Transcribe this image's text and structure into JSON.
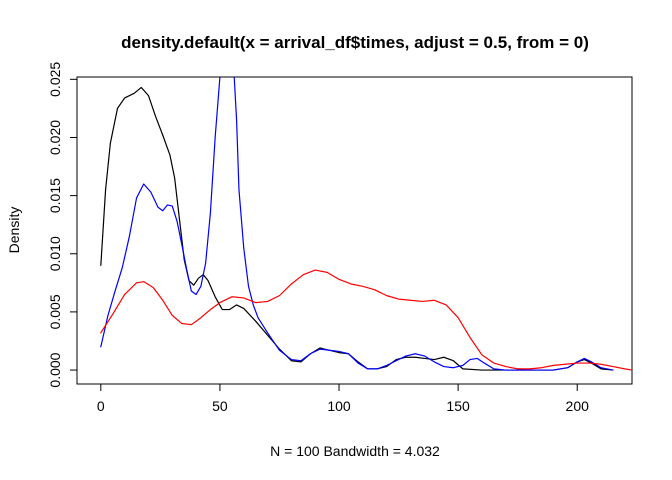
{
  "chart_data": {
    "type": "line",
    "title": "density.default(x = arrival_df$times, adjust = 0.5, from = 0)",
    "xlabel": "N = 100   Bandwidth = 4.032",
    "ylabel": "Density",
    "xlim": [
      -10,
      223
    ],
    "ylim": [
      -0.0012,
      0.0252
    ],
    "xticks": [
      0,
      50,
      100,
      150,
      200
    ],
    "yticks": [
      0.0,
      0.005,
      0.01,
      0.015,
      0.02,
      0.025
    ],
    "xtick_labels": [
      "0",
      "50",
      "100",
      "150",
      "200"
    ],
    "ytick_labels": [
      "0.000",
      "0.005",
      "0.010",
      "0.015",
      "0.020",
      "0.025"
    ],
    "grid": false,
    "legend": "none",
    "series": [
      {
        "color": "#000000",
        "points": [
          [
            0,
            0.009
          ],
          [
            2,
            0.0155
          ],
          [
            4,
            0.0195
          ],
          [
            7,
            0.0225
          ],
          [
            10,
            0.0234
          ],
          [
            14,
            0.0238
          ],
          [
            17,
            0.0243
          ],
          [
            20,
            0.0236
          ],
          [
            23,
            0.0218
          ],
          [
            26,
            0.0202
          ],
          [
            29,
            0.0185
          ],
          [
            31,
            0.0165
          ],
          [
            33,
            0.013
          ],
          [
            35,
            0.0095
          ],
          [
            37,
            0.0077
          ],
          [
            39,
            0.0073
          ],
          [
            41,
            0.0079
          ],
          [
            43,
            0.0082
          ],
          [
            45,
            0.0077
          ],
          [
            48,
            0.0063
          ],
          [
            51,
            0.0052
          ],
          [
            54,
            0.0052
          ],
          [
            57,
            0.0056
          ],
          [
            60,
            0.0053
          ],
          [
            65,
            0.0042
          ],
          [
            70,
            0.003
          ],
          [
            75,
            0.0018
          ],
          [
            80,
            0.0008
          ],
          [
            84,
            0.0007
          ],
          [
            88,
            0.0014
          ],
          [
            92,
            0.0019
          ],
          [
            96,
            0.0017
          ],
          [
            100,
            0.0015
          ],
          [
            104,
            0.0014
          ],
          [
            108,
            0.0007
          ],
          [
            112,
            0.0001
          ],
          [
            116,
            0.0001
          ],
          [
            120,
            0.0003
          ],
          [
            124,
            0.0009
          ],
          [
            128,
            0.0011
          ],
          [
            132,
            0.0011
          ],
          [
            136,
            0.001
          ],
          [
            140,
            0.0009
          ],
          [
            144,
            0.0011
          ],
          [
            148,
            0.0008
          ],
          [
            152,
            0.0001
          ],
          [
            160,
            0.0
          ],
          [
            170,
            0.0
          ],
          [
            180,
            0.0
          ],
          [
            190,
            0.0
          ],
          [
            196,
            0.0002
          ],
          [
            200,
            0.0007
          ],
          [
            203,
            0.0009
          ],
          [
            206,
            0.0006
          ],
          [
            210,
            0.0001
          ],
          [
            215,
            0.0
          ]
        ]
      },
      {
        "color": "#0000ff",
        "points": [
          [
            0,
            0.002
          ],
          [
            3,
            0.0047
          ],
          [
            6,
            0.0068
          ],
          [
            9,
            0.0088
          ],
          [
            12,
            0.0115
          ],
          [
            15,
            0.0148
          ],
          [
            18,
            0.016
          ],
          [
            21,
            0.0153
          ],
          [
            24,
            0.014
          ],
          [
            26,
            0.0137
          ],
          [
            28,
            0.0142
          ],
          [
            30,
            0.0141
          ],
          [
            32,
            0.0128
          ],
          [
            34,
            0.0108
          ],
          [
            36,
            0.0087
          ],
          [
            38,
            0.0068
          ],
          [
            40,
            0.0065
          ],
          [
            42,
            0.0072
          ],
          [
            44,
            0.0092
          ],
          [
            46,
            0.0135
          ],
          [
            48,
            0.02
          ],
          [
            50,
            0.0252
          ],
          [
            51,
            0.0255
          ],
          [
            55,
            0.0255
          ],
          [
            56,
            0.0252
          ],
          [
            57,
            0.0215
          ],
          [
            58,
            0.0155
          ],
          [
            60,
            0.0105
          ],
          [
            62,
            0.0072
          ],
          [
            64,
            0.0056
          ],
          [
            66,
            0.0045
          ],
          [
            70,
            0.0032
          ],
          [
            75,
            0.0017
          ],
          [
            80,
            0.0009
          ],
          [
            84,
            0.0008
          ],
          [
            88,
            0.0014
          ],
          [
            92,
            0.0018
          ],
          [
            96,
            0.0017
          ],
          [
            100,
            0.0016
          ],
          [
            104,
            0.0014
          ],
          [
            108,
            0.0006
          ],
          [
            112,
            0.0001
          ],
          [
            116,
            0.0001
          ],
          [
            120,
            0.0004
          ],
          [
            124,
            0.0008
          ],
          [
            128,
            0.0012
          ],
          [
            132,
            0.0014
          ],
          [
            136,
            0.0012
          ],
          [
            140,
            0.0007
          ],
          [
            144,
            0.0003
          ],
          [
            148,
            0.0002
          ],
          [
            152,
            0.0004
          ],
          [
            155,
            0.0009
          ],
          [
            158,
            0.001
          ],
          [
            161,
            0.0006
          ],
          [
            165,
            0.0001
          ],
          [
            170,
            0.0
          ],
          [
            180,
            0.0
          ],
          [
            190,
            0.0
          ],
          [
            196,
            0.0002
          ],
          [
            200,
            0.0007
          ],
          [
            203,
            0.001
          ],
          [
            206,
            0.0007
          ],
          [
            210,
            0.0002
          ],
          [
            215,
            0.0
          ]
        ]
      },
      {
        "color": "#ff0000",
        "points": [
          [
            0,
            0.0032
          ],
          [
            5,
            0.0048
          ],
          [
            10,
            0.0065
          ],
          [
            15,
            0.0075
          ],
          [
            18,
            0.0076
          ],
          [
            22,
            0.0071
          ],
          [
            26,
            0.006
          ],
          [
            30,
            0.0047
          ],
          [
            34,
            0.004
          ],
          [
            38,
            0.0039
          ],
          [
            42,
            0.0045
          ],
          [
            46,
            0.0052
          ],
          [
            50,
            0.0058
          ],
          [
            55,
            0.0063
          ],
          [
            60,
            0.0062
          ],
          [
            65,
            0.0058
          ],
          [
            70,
            0.0059
          ],
          [
            75,
            0.0064
          ],
          [
            80,
            0.0074
          ],
          [
            85,
            0.0082
          ],
          [
            90,
            0.0086
          ],
          [
            95,
            0.0084
          ],
          [
            100,
            0.0078
          ],
          [
            105,
            0.0074
          ],
          [
            110,
            0.0072
          ],
          [
            115,
            0.0069
          ],
          [
            120,
            0.0064
          ],
          [
            125,
            0.0061
          ],
          [
            130,
            0.006
          ],
          [
            135,
            0.0059
          ],
          [
            140,
            0.006
          ],
          [
            145,
            0.0056
          ],
          [
            150,
            0.0045
          ],
          [
            155,
            0.0028
          ],
          [
            160,
            0.0013
          ],
          [
            165,
            0.0006
          ],
          [
            170,
            0.0003
          ],
          [
            175,
            0.0001
          ],
          [
            180,
            0.0001
          ],
          [
            185,
            0.0002
          ],
          [
            190,
            0.0004
          ],
          [
            195,
            0.0005
          ],
          [
            200,
            0.0006
          ],
          [
            205,
            0.0006
          ],
          [
            210,
            0.0005
          ],
          [
            215,
            0.0003
          ],
          [
            220,
            0.0001
          ],
          [
            223,
            0.0
          ]
        ]
      }
    ]
  }
}
